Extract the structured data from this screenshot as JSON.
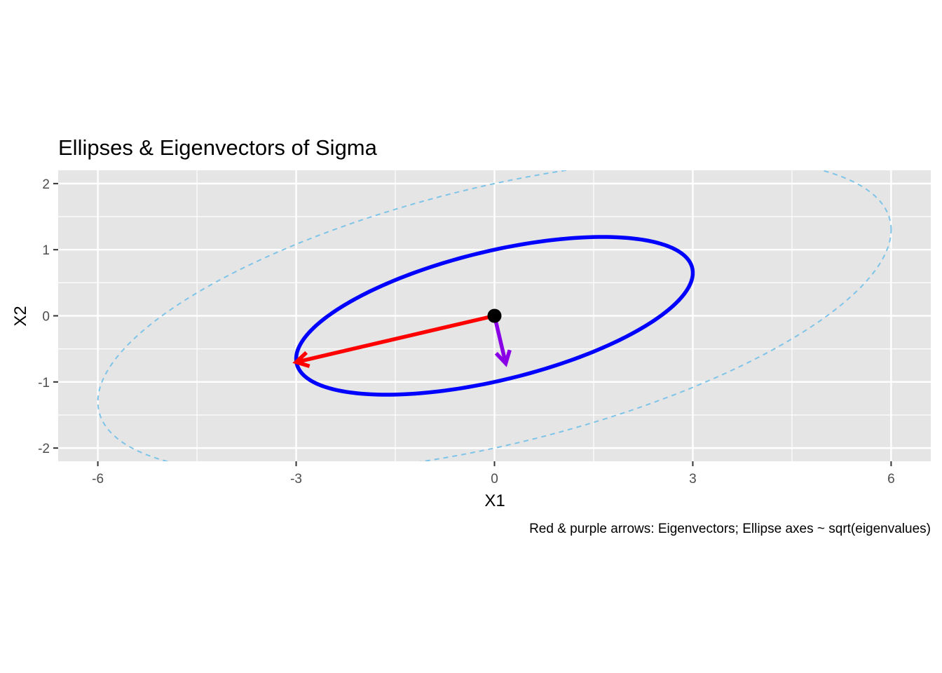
{
  "chart_data": {
    "type": "line",
    "title": "Ellipses & Eigenvectors of Sigma",
    "xlabel": "X1",
    "ylabel": "X2",
    "caption": "Red & purple arrows: Eigenvectors; Ellipse axes ~  sqrt(eigenvalues)",
    "xlim": [
      -6.6,
      6.6
    ],
    "ylim": [
      -2.2,
      2.2
    ],
    "x_ticks": [
      -6,
      -3,
      0,
      3,
      6
    ],
    "x_tick_labels": [
      "-6",
      "-3",
      "0",
      "3",
      "6"
    ],
    "y_ticks": [
      -2,
      -1,
      0,
      1,
      2
    ],
    "y_tick_labels": [
      "-2",
      "-1",
      "0",
      "1",
      "2"
    ],
    "grid": true,
    "background": "#e5e5e5",
    "center": {
      "x": 0,
      "y": 0,
      "color": "#000000"
    },
    "ellipses": [
      {
        "id": "outer",
        "a": [
          6,
          1.3
        ],
        "b": [
          0,
          2
        ],
        "color": "#7ec4e8",
        "dashed": true
      },
      {
        "id": "inner",
        "a": [
          3,
          0.65
        ],
        "b": [
          0,
          1
        ],
        "color": "#0000ff",
        "dashed": false
      }
    ],
    "arrows": [
      {
        "id": "eigenvector-1",
        "from": [
          0,
          0
        ],
        "to": [
          -3,
          -0.7
        ],
        "color": "#ff0000"
      },
      {
        "id": "eigenvector-2",
        "from": [
          0,
          0
        ],
        "to": [
          0.17,
          -0.72
        ],
        "color": "#8a00e6"
      }
    ]
  }
}
